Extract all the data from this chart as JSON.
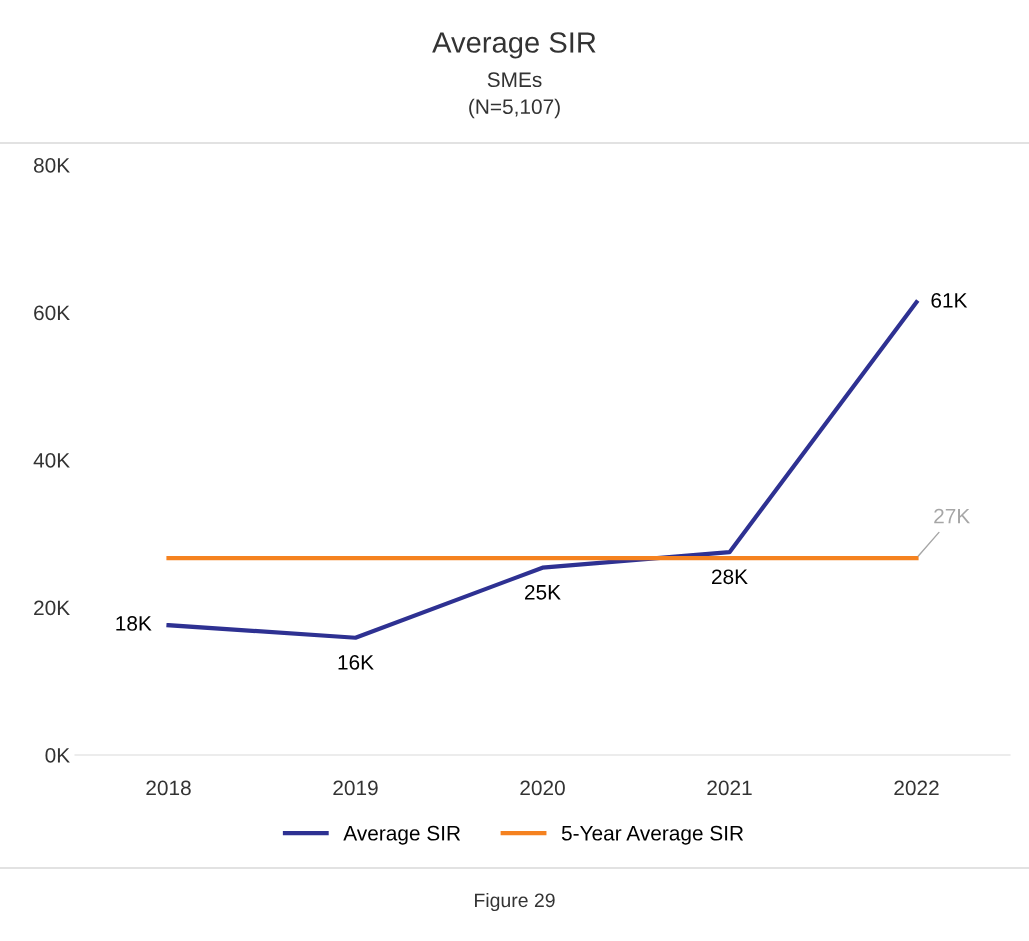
{
  "chart_data": {
    "type": "line",
    "title": "Average SIR",
    "subtitle": "SMEs\n(N=5,107)",
    "categories": [
      "2018",
      "2019",
      "2020",
      "2021",
      "2022"
    ],
    "series": [
      {
        "name": "Average SIR",
        "color": "#2e3192",
        "values": [
          17.6,
          15.9,
          25.4,
          27.5,
          61.4
        ],
        "value_labels": [
          "18K",
          "16K",
          "25K",
          "28K",
          "61K"
        ]
      },
      {
        "name": "5-Year Average SIR",
        "color": "#f58220",
        "values": [
          26.7,
          26.7,
          26.7,
          26.7,
          26.7
        ],
        "value_labels": [
          null,
          null,
          null,
          null,
          "27K"
        ]
      }
    ],
    "ylim": [
      0,
      80
    ],
    "yticks": [
      {
        "value": 0,
        "label": "0K"
      },
      {
        "value": 20,
        "label": "20K"
      },
      {
        "value": 40,
        "label": "40K"
      },
      {
        "value": 60,
        "label": "60K"
      },
      {
        "value": 80,
        "label": "80K"
      }
    ],
    "grid": false,
    "legend": "bottom",
    "marker": "none",
    "line_style": "solid",
    "annotations": [
      "Figure 29"
    ]
  }
}
